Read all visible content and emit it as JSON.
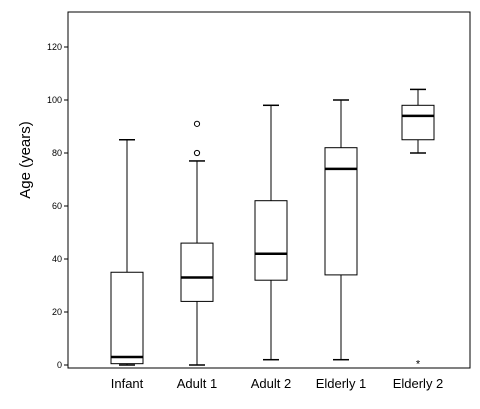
{
  "chart_data": {
    "type": "box",
    "ylabel": "Age (years)",
    "xlabel": "",
    "ylim": [
      0,
      130
    ],
    "yticks": [
      0,
      20,
      40,
      60,
      80,
      100,
      120
    ],
    "grid": false,
    "categories": [
      "Infant",
      "Adult 1",
      "Adult 2",
      "Elderly 1",
      "Elderly 2"
    ],
    "boxes": [
      {
        "category": "Infant",
        "whisker_low": 0,
        "q1": 0.5,
        "median": 3,
        "q3": 35,
        "whisker_high": 85,
        "outliers": [],
        "extremes": []
      },
      {
        "category": "Adult 1",
        "whisker_low": 0,
        "q1": 24,
        "median": 33,
        "q3": 46,
        "whisker_high": 77,
        "outliers": [
          80,
          91
        ],
        "extremes": []
      },
      {
        "category": "Adult 2",
        "whisker_low": 2,
        "q1": 32,
        "median": 42,
        "q3": 62,
        "whisker_high": 98,
        "outliers": [],
        "extremes": []
      },
      {
        "category": "Elderly 1",
        "whisker_low": 2,
        "q1": 34,
        "median": 74,
        "q3": 82,
        "whisker_high": 100,
        "outliers": [],
        "extremes": []
      },
      {
        "category": "Elderly 2",
        "whisker_low": 80,
        "q1": 85,
        "median": 94,
        "q3": 98,
        "whisker_high": 104,
        "outliers": [],
        "extremes": [
          1
        ]
      }
    ],
    "colors": {
      "box_fill": "#ffffff",
      "stroke": "#000000"
    }
  }
}
